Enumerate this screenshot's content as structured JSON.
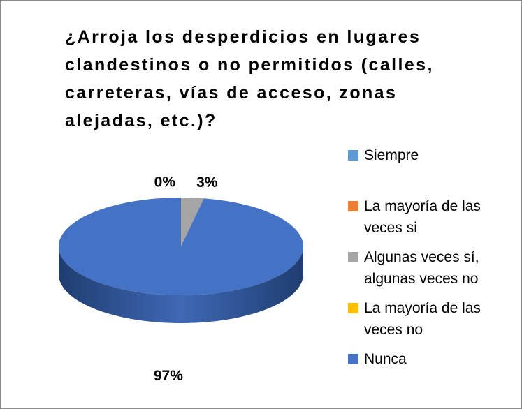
{
  "chart_data": {
    "type": "pie",
    "title": "¿Arroja los desperdicios en lugares clandestinos o no permitidos (calles, carreteras, vías de acceso, zonas alejadas, etc.)?",
    "categories": [
      "Siempre",
      "La mayoría de las veces si",
      "Algunas veces sí, algunas veces no",
      "La mayoría de las veces no",
      "Nunca"
    ],
    "values": [
      0,
      0,
      3,
      0,
      97
    ],
    "value_labels": [
      "0%",
      null,
      "3%",
      null,
      "97%"
    ],
    "colors": [
      "#5b9bd5",
      "#ed7d31",
      "#a5a5a5",
      "#ffc000",
      "#4472c4"
    ],
    "legend": "right"
  }
}
